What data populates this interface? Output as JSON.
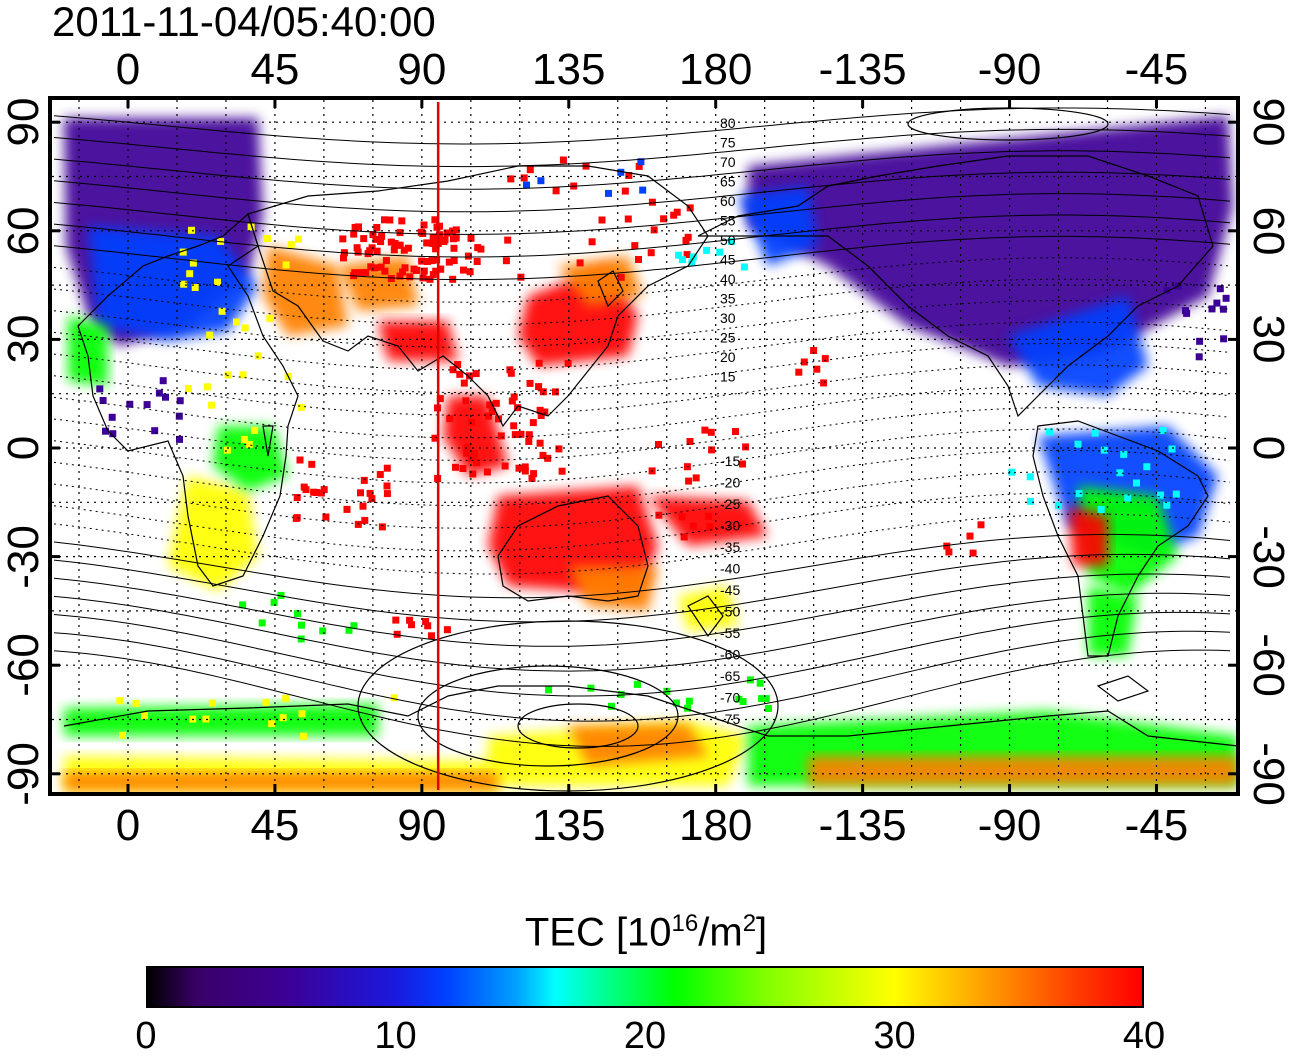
{
  "title": "2011-11-04/05:40:00",
  "x_tick_labels": [
    "0",
    "45",
    "90",
    "135",
    "180",
    "-135",
    "-90",
    "-45"
  ],
  "y_tick_labels": [
    "90",
    "60",
    "30",
    "0",
    "-30",
    "-60",
    "-90"
  ],
  "contour_labels_north": [
    "80",
    "75",
    "70",
    "65",
    "60",
    "55",
    "50",
    "45",
    "40",
    "35",
    "30",
    "25",
    "20",
    "15"
  ],
  "contour_labels_south": [
    "-15",
    "-20",
    "-25",
    "-30",
    "-35",
    "-40",
    "-45",
    "-50",
    "-55",
    "-60",
    "-65",
    "-70",
    "-75"
  ],
  "colorbar": {
    "title_prefix": "TEC  [10",
    "title_exp1": "16",
    "title_mid": "/m",
    "title_exp2": "2",
    "title_suffix": "]",
    "tick_labels": [
      "0",
      "10",
      "20",
      "30",
      "40"
    ],
    "min": 0,
    "max": 40
  },
  "colors": {
    "tec_scale": [
      "#000000",
      "#3c0096",
      "#0040ff",
      "#00ffff",
      "#00ff00",
      "#ffff00",
      "#ff8000",
      "#ff0000"
    ],
    "marker_line": "#e00000"
  },
  "marker_longitude": 95
}
